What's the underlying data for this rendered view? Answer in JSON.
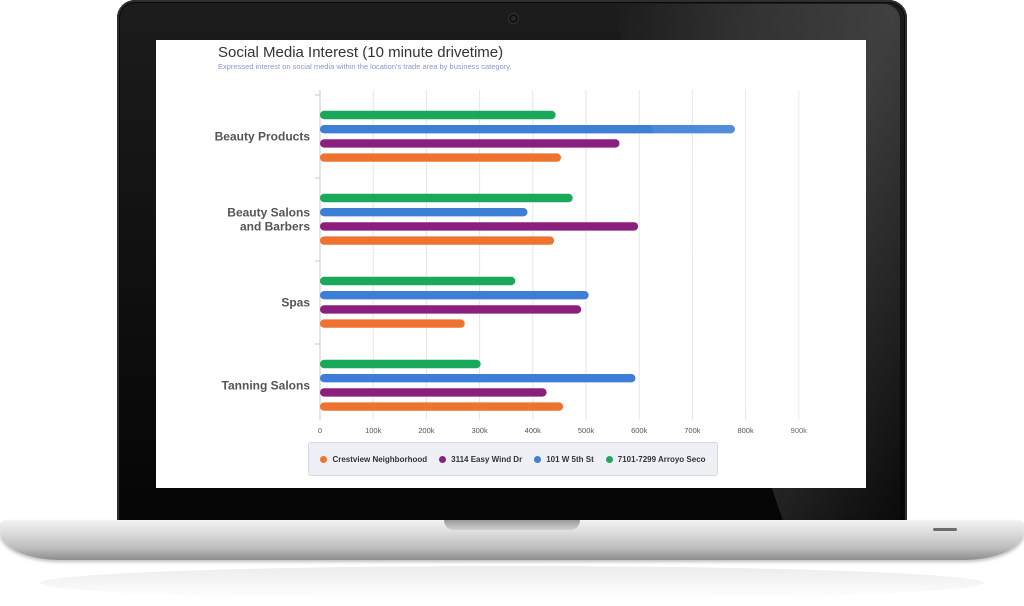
{
  "chart_data": {
    "type": "bar",
    "orientation": "horizontal",
    "title": "Social Media Interest (10 minute drivetime)",
    "subtitle": "Expressed interest on social media within the location's trade area by business category.",
    "categories": [
      [
        "Beauty Products"
      ],
      [
        "Beauty Salons",
        "and Barbers"
      ],
      [
        "Spas"
      ],
      [
        "Tanning Salons"
      ]
    ],
    "series": [
      {
        "name": "7101-7299 Arroyo Seco",
        "color": "#1aa85b",
        "values": [
          443000,
          475000,
          367000,
          302000
        ]
      },
      {
        "name": "101 W 5th St",
        "color": "#3d7fd6",
        "values": [
          780000,
          390000,
          505000,
          593000
        ]
      },
      {
        "name": "3114 Easy Wind Dr",
        "color": "#8b1f7e",
        "values": [
          563000,
          598000,
          491000,
          426000
        ]
      },
      {
        "name": "Crestview Neighborhood",
        "color": "#ee7330",
        "values": [
          453000,
          440000,
          272000,
          457000
        ]
      }
    ],
    "xticks": [
      "0",
      "100k",
      "200k",
      "300k",
      "400k",
      "500k",
      "600k",
      "700k",
      "800k",
      "900k"
    ],
    "xlim": [
      0,
      900000
    ],
    "grid": true,
    "legend_position": "bottom",
    "legend_order": [
      "Crestview Neighborhood",
      "3114 Easy Wind Dr",
      "101 W 5th St",
      "7101-7299 Arroyo Seco"
    ]
  }
}
